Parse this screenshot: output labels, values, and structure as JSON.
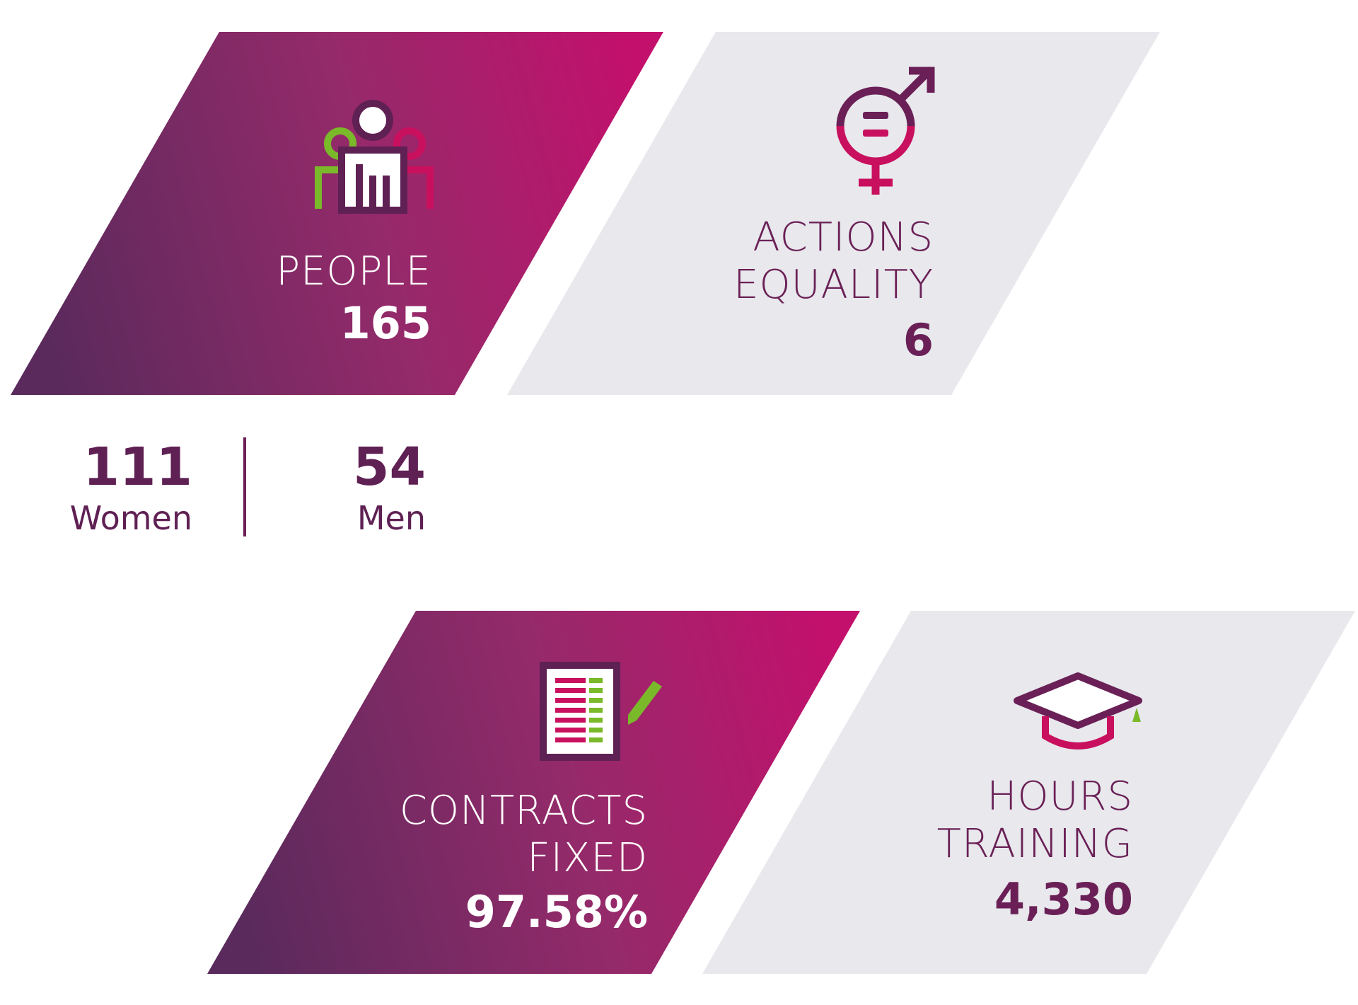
{
  "colors": {
    "gradient_start": "#5e2a5e",
    "gradient_mid": "#962b6b",
    "gradient_end": "#c0126c",
    "light_panel": "#e8e8ed",
    "dark_text": "#6a2056",
    "accent_green": "#7ab929",
    "accent_magenta": "#c8105e"
  },
  "people": {
    "icon": "people-group-icon",
    "label": "PEOPLE",
    "value": "165",
    "women": {
      "value": "111",
      "label": "Women"
    },
    "men": {
      "value": "54",
      "label": "Men"
    }
  },
  "equality": {
    "icon": "gender-equality-icon",
    "label_line1": "ACTIONS",
    "label_line2": "EQUALITY",
    "value": "6"
  },
  "contracts": {
    "icon": "contract-document-icon",
    "label_line1": "CONTRACTS",
    "label_line2": "FIXED",
    "value": "97.58%"
  },
  "training": {
    "icon": "graduation-cap-icon",
    "label_line1": "HOURS",
    "label_line2": "TRAINING",
    "value": "4,330"
  }
}
